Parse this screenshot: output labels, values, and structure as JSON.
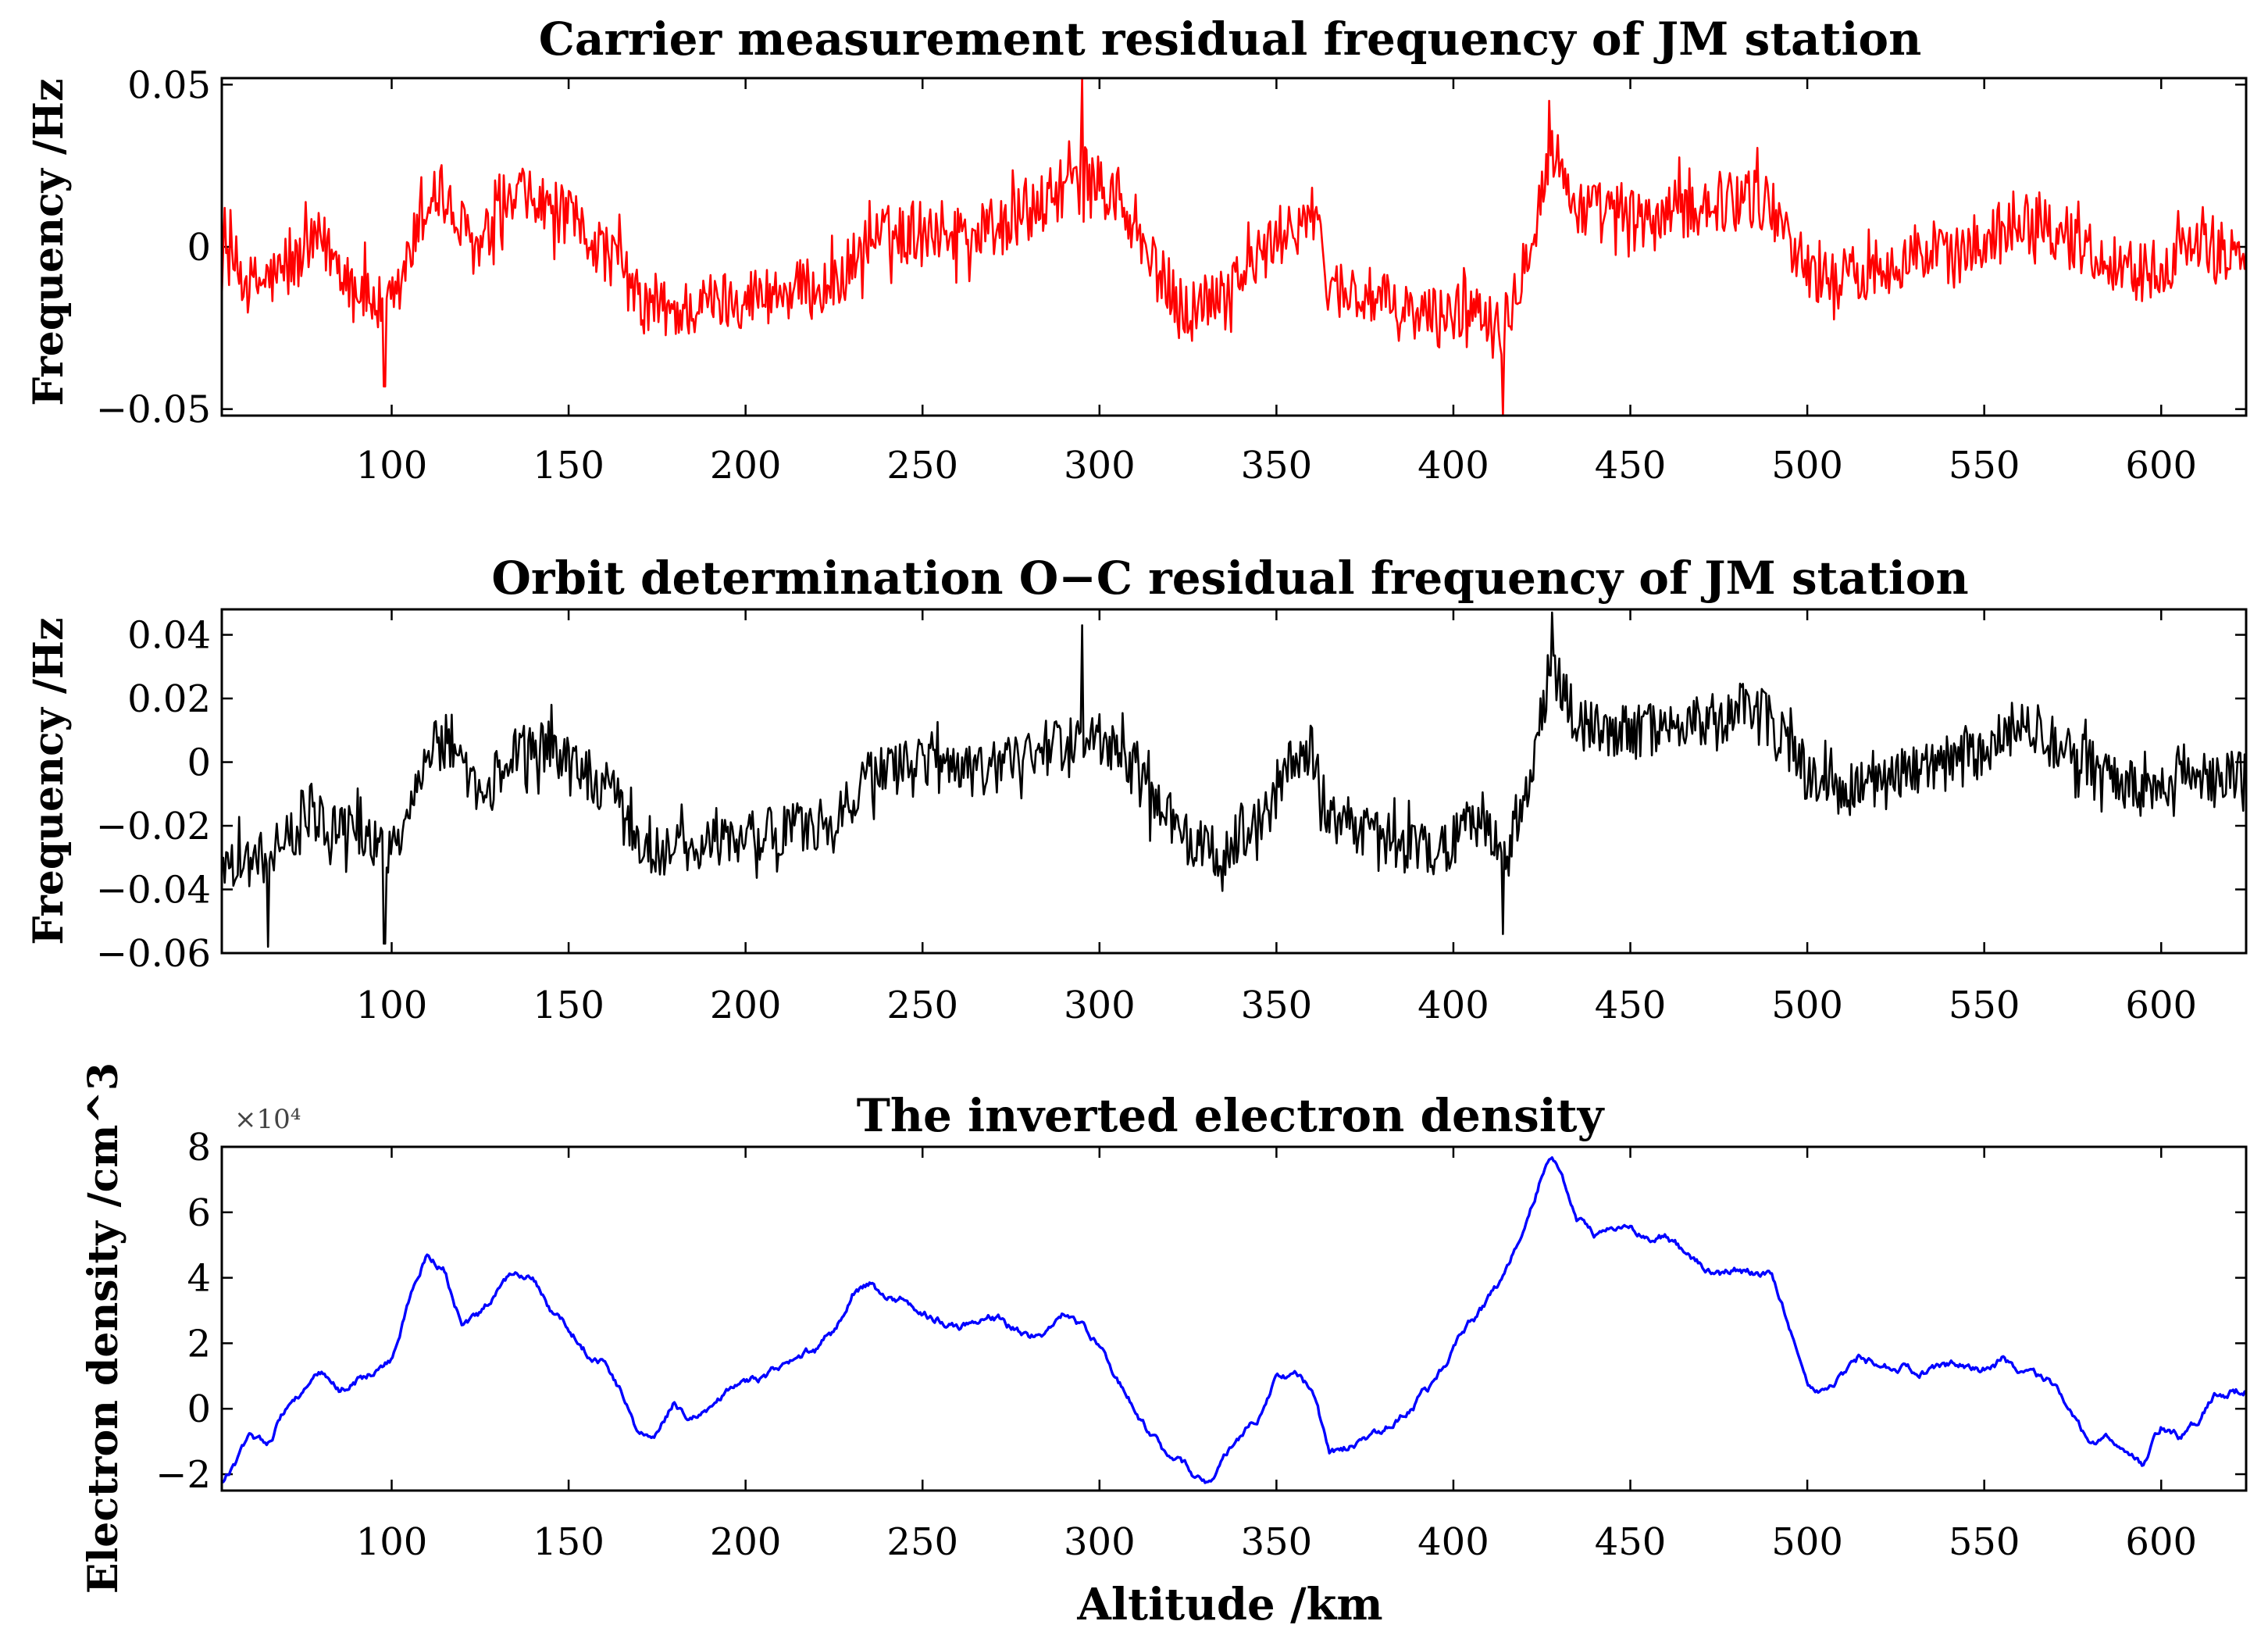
{
  "chart_data": [
    {
      "type": "line",
      "title": "Carrier measurement residual frequency of JM station",
      "xlabel": "",
      "ylabel": "Frequency  /Hz",
      "xlim": [
        52,
        624
      ],
      "ylim": [
        -0.052,
        0.052
      ],
      "xticks": [
        100,
        150,
        200,
        250,
        300,
        350,
        400,
        450,
        500,
        550,
        600
      ],
      "yticks": [
        -0.05,
        0,
        0.05
      ],
      "ytick_labels": [
        "−0.05",
        "0",
        "0.05"
      ],
      "color": "#ff0000",
      "grid": false,
      "noise_amplitude": 0.0095,
      "spikes": [
        [
          295,
          0.055
        ],
        [
          414,
          -0.052
        ],
        [
          98,
          -0.043
        ],
        [
          427,
          0.045
        ]
      ],
      "series": [
        {
          "name": "residual frequency",
          "x": [
            52,
            60,
            70,
            80,
            90,
            100,
            105,
            112,
            118,
            125,
            135,
            145,
            155,
            165,
            170,
            180,
            195,
            210,
            225,
            235,
            250,
            265,
            280,
            290,
            297,
            305,
            315,
            325,
            335,
            345,
            355,
            360,
            365,
            375,
            385,
            395,
            405,
            415,
            420,
            428,
            435,
            445,
            455,
            465,
            475,
            485,
            492,
            500,
            510,
            520,
            530,
            540,
            550,
            560,
            565,
            575,
            585,
            595,
            605,
            615,
            624
          ],
          "y": [
            0.0,
            -0.012,
            -0.008,
            0.002,
            -0.012,
            -0.022,
            -0.002,
            0.018,
            0.008,
            -0.002,
            0.015,
            0.012,
            0.004,
            -0.006,
            -0.018,
            -0.02,
            -0.016,
            -0.014,
            -0.012,
            0.002,
            0.006,
            0.004,
            0.01,
            0.018,
            0.022,
            0.014,
            -0.006,
            -0.02,
            -0.012,
            -0.004,
            0.008,
            0.01,
            -0.012,
            -0.015,
            -0.02,
            -0.022,
            -0.018,
            -0.022,
            -0.004,
            0.03,
            0.012,
            0.01,
            0.008,
            0.012,
            0.014,
            0.016,
            0.01,
            -0.008,
            -0.01,
            -0.006,
            -0.002,
            -0.004,
            0.002,
            0.01,
            0.008,
            0.002,
            -0.004,
            -0.008,
            -0.002,
            -0.002,
            0.0
          ]
        }
      ]
    },
    {
      "type": "line",
      "title": "Orbit determination O−C residual frequency of JM station",
      "xlabel": "",
      "ylabel": "Frequency  /Hz",
      "xlim": [
        52,
        624
      ],
      "ylim": [
        -0.06,
        0.048
      ],
      "xticks": [
        100,
        150,
        200,
        250,
        300,
        350,
        400,
        450,
        500,
        550,
        600
      ],
      "yticks": [
        -0.06,
        -0.04,
        -0.02,
        0,
        0.02,
        0.04
      ],
      "ytick_labels": [
        "−0.06",
        "−0.04",
        "−0.02",
        "0",
        "0.02",
        "0.04"
      ],
      "color": "#000000",
      "grid": false,
      "noise_amplitude": 0.0085,
      "spikes": [
        [
          295,
          0.043
        ],
        [
          428,
          0.047
        ],
        [
          414,
          -0.054
        ],
        [
          65,
          -0.058
        ],
        [
          98,
          -0.057
        ]
      ],
      "series": [
        {
          "name": "O−C residual",
          "x": [
            52,
            60,
            70,
            80,
            90,
            100,
            105,
            112,
            118,
            125,
            135,
            145,
            155,
            165,
            170,
            180,
            195,
            210,
            225,
            235,
            250,
            265,
            280,
            290,
            297,
            305,
            315,
            325,
            335,
            345,
            355,
            360,
            365,
            375,
            385,
            395,
            405,
            415,
            420,
            428,
            435,
            445,
            455,
            465,
            475,
            485,
            492,
            500,
            510,
            520,
            530,
            540,
            550,
            560,
            565,
            575,
            585,
            595,
            605,
            615,
            624
          ],
          "y": [
            -0.03,
            -0.032,
            -0.025,
            -0.018,
            -0.022,
            -0.028,
            -0.012,
            0.008,
            0.0,
            -0.012,
            0.005,
            0.004,
            -0.004,
            -0.012,
            -0.026,
            -0.028,
            -0.025,
            -0.022,
            -0.018,
            -0.004,
            0.0,
            -0.004,
            0.002,
            0.006,
            0.01,
            0.004,
            -0.012,
            -0.024,
            -0.028,
            -0.018,
            0.002,
            0.004,
            -0.018,
            -0.022,
            -0.026,
            -0.028,
            -0.022,
            -0.026,
            -0.012,
            0.03,
            0.012,
            0.01,
            0.01,
            0.012,
            0.014,
            0.018,
            0.01,
            -0.004,
            -0.01,
            -0.006,
            -0.002,
            -0.002,
            0.004,
            0.012,
            0.01,
            0.002,
            -0.004,
            -0.01,
            -0.002,
            -0.006,
            -0.004
          ]
        }
      ]
    },
    {
      "type": "line",
      "title": "The inverted electron density",
      "xlabel": "Altitude /km",
      "ylabel": "Electron density /cm^3",
      "y_multiplier": "×10⁴",
      "xlim": [
        52,
        624
      ],
      "ylim": [
        -2.5,
        8
      ],
      "xticks": [
        100,
        150,
        200,
        250,
        300,
        350,
        400,
        450,
        500,
        550,
        600
      ],
      "yticks": [
        -2,
        0,
        2,
        4,
        6,
        8
      ],
      "ytick_labels": [
        "−2",
        "0",
        "2",
        "4",
        "6",
        "8"
      ],
      "color": "#0000ff",
      "grid": false,
      "noise_amplitude": 0.18,
      "spikes": [],
      "series": [
        {
          "name": "electron density",
          "x": [
            52,
            55,
            60,
            65,
            70,
            75,
            80,
            85,
            90,
            95,
            100,
            105,
            110,
            115,
            120,
            125,
            130,
            135,
            140,
            145,
            150,
            155,
            160,
            165,
            170,
            175,
            180,
            185,
            190,
            195,
            200,
            210,
            220,
            225,
            230,
            235,
            240,
            245,
            250,
            260,
            270,
            280,
            285,
            290,
            295,
            300,
            305,
            310,
            315,
            320,
            325,
            330,
            335,
            340,
            345,
            350,
            355,
            360,
            365,
            370,
            375,
            380,
            385,
            390,
            395,
            400,
            405,
            410,
            415,
            420,
            425,
            428,
            432,
            435,
            440,
            445,
            450,
            455,
            460,
            465,
            470,
            475,
            480,
            485,
            490,
            495,
            500,
            505,
            510,
            515,
            520,
            530,
            540,
            550,
            555,
            560,
            565,
            570,
            575,
            580,
            585,
            590,
            595,
            600,
            605,
            610,
            615,
            620,
            624
          ],
          "y": [
            -2.3,
            -1.8,
            -0.9,
            -1.0,
            0.0,
            0.6,
            1.0,
            0.5,
            0.9,
            1.1,
            1.5,
            3.3,
            4.8,
            4.2,
            2.5,
            2.8,
            3.5,
            4.2,
            4.2,
            3.0,
            2.5,
            1.8,
            1.5,
            0.5,
            -0.9,
            -0.8,
            0.2,
            -0.3,
            0.1,
            0.5,
            0.8,
            1.2,
            1.8,
            2.3,
            3.6,
            3.8,
            3.3,
            3.3,
            2.9,
            2.6,
            2.8,
            2.2,
            2.4,
            2.9,
            2.5,
            1.8,
            0.9,
            0.0,
            -0.9,
            -1.6,
            -1.8,
            -2.3,
            -1.6,
            -0.8,
            -0.2,
            0.9,
            1.0,
            0.5,
            -1.5,
            -1.2,
            -0.9,
            -0.8,
            -0.2,
            0.3,
            0.8,
            1.8,
            2.6,
            3.3,
            4.2,
            5.5,
            7.2,
            7.8,
            6.8,
            5.9,
            5.4,
            5.6,
            5.4,
            5.2,
            5.2,
            4.8,
            4.4,
            4.1,
            4.2,
            4.1,
            4.0,
            2.5,
            0.8,
            0.6,
            1.0,
            1.6,
            1.3,
            1.2,
            1.3,
            1.2,
            1.5,
            1.0,
            0.9,
            0.7,
            0.0,
            -1.0,
            -0.9,
            -1.6,
            -1.8,
            -0.6,
            -0.9,
            -0.4,
            0.4,
            0.5,
            0.6
          ]
        }
      ]
    }
  ]
}
